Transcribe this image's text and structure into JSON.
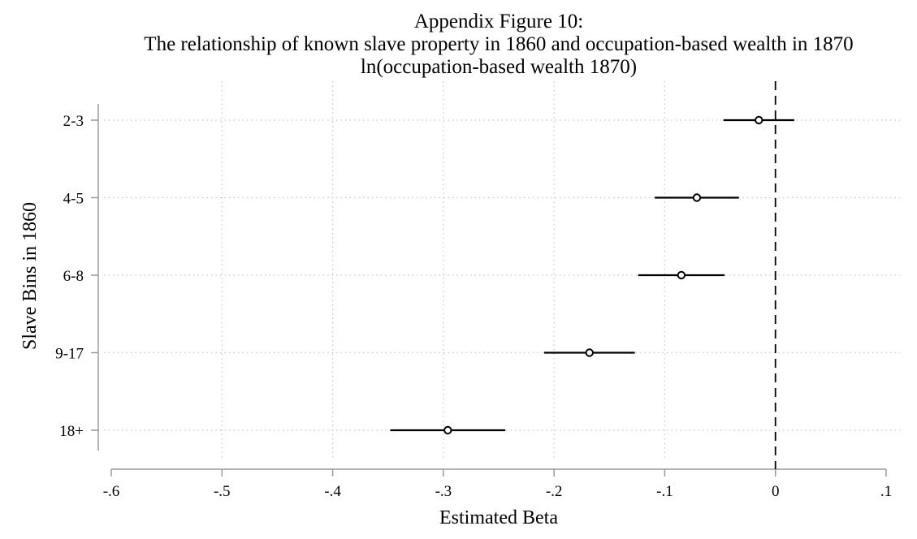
{
  "chart_data": {
    "type": "coefficient-plot",
    "title_lines": [
      "Appendix Figure 10:",
      "The relationship of known slave property in 1860 and occupation-based wealth in 1870",
      "ln(occupation-based wealth 1870)"
    ],
    "xlabel": "Estimated Beta",
    "ylabel": "Slave Bins in 1860",
    "xlim": [
      -0.6,
      0.1
    ],
    "x_ticks": [
      -0.6,
      -0.5,
      -0.4,
      -0.3,
      -0.2,
      -0.1,
      0,
      0.1
    ],
    "x_tick_labels": [
      "-.6",
      "-.5",
      "-.4",
      "-.3",
      "-.2",
      "-.1",
      "0",
      ".1"
    ],
    "reference_line_x": 0,
    "grid": true,
    "categories": [
      "2-3",
      "4-5",
      "6-8",
      "9-17",
      "18+"
    ],
    "estimates": [
      {
        "label": "2-3",
        "beta": -0.015,
        "ci_low": -0.047,
        "ci_high": 0.017
      },
      {
        "label": "4-5",
        "beta": -0.071,
        "ci_low": -0.109,
        "ci_high": -0.033
      },
      {
        "label": "6-8",
        "beta": -0.085,
        "ci_low": -0.124,
        "ci_high": -0.046
      },
      {
        "label": "9-17",
        "beta": -0.168,
        "ci_low": -0.209,
        "ci_high": -0.127
      },
      {
        "label": "18+",
        "beta": -0.296,
        "ci_low": -0.348,
        "ci_high": -0.244
      }
    ]
  }
}
